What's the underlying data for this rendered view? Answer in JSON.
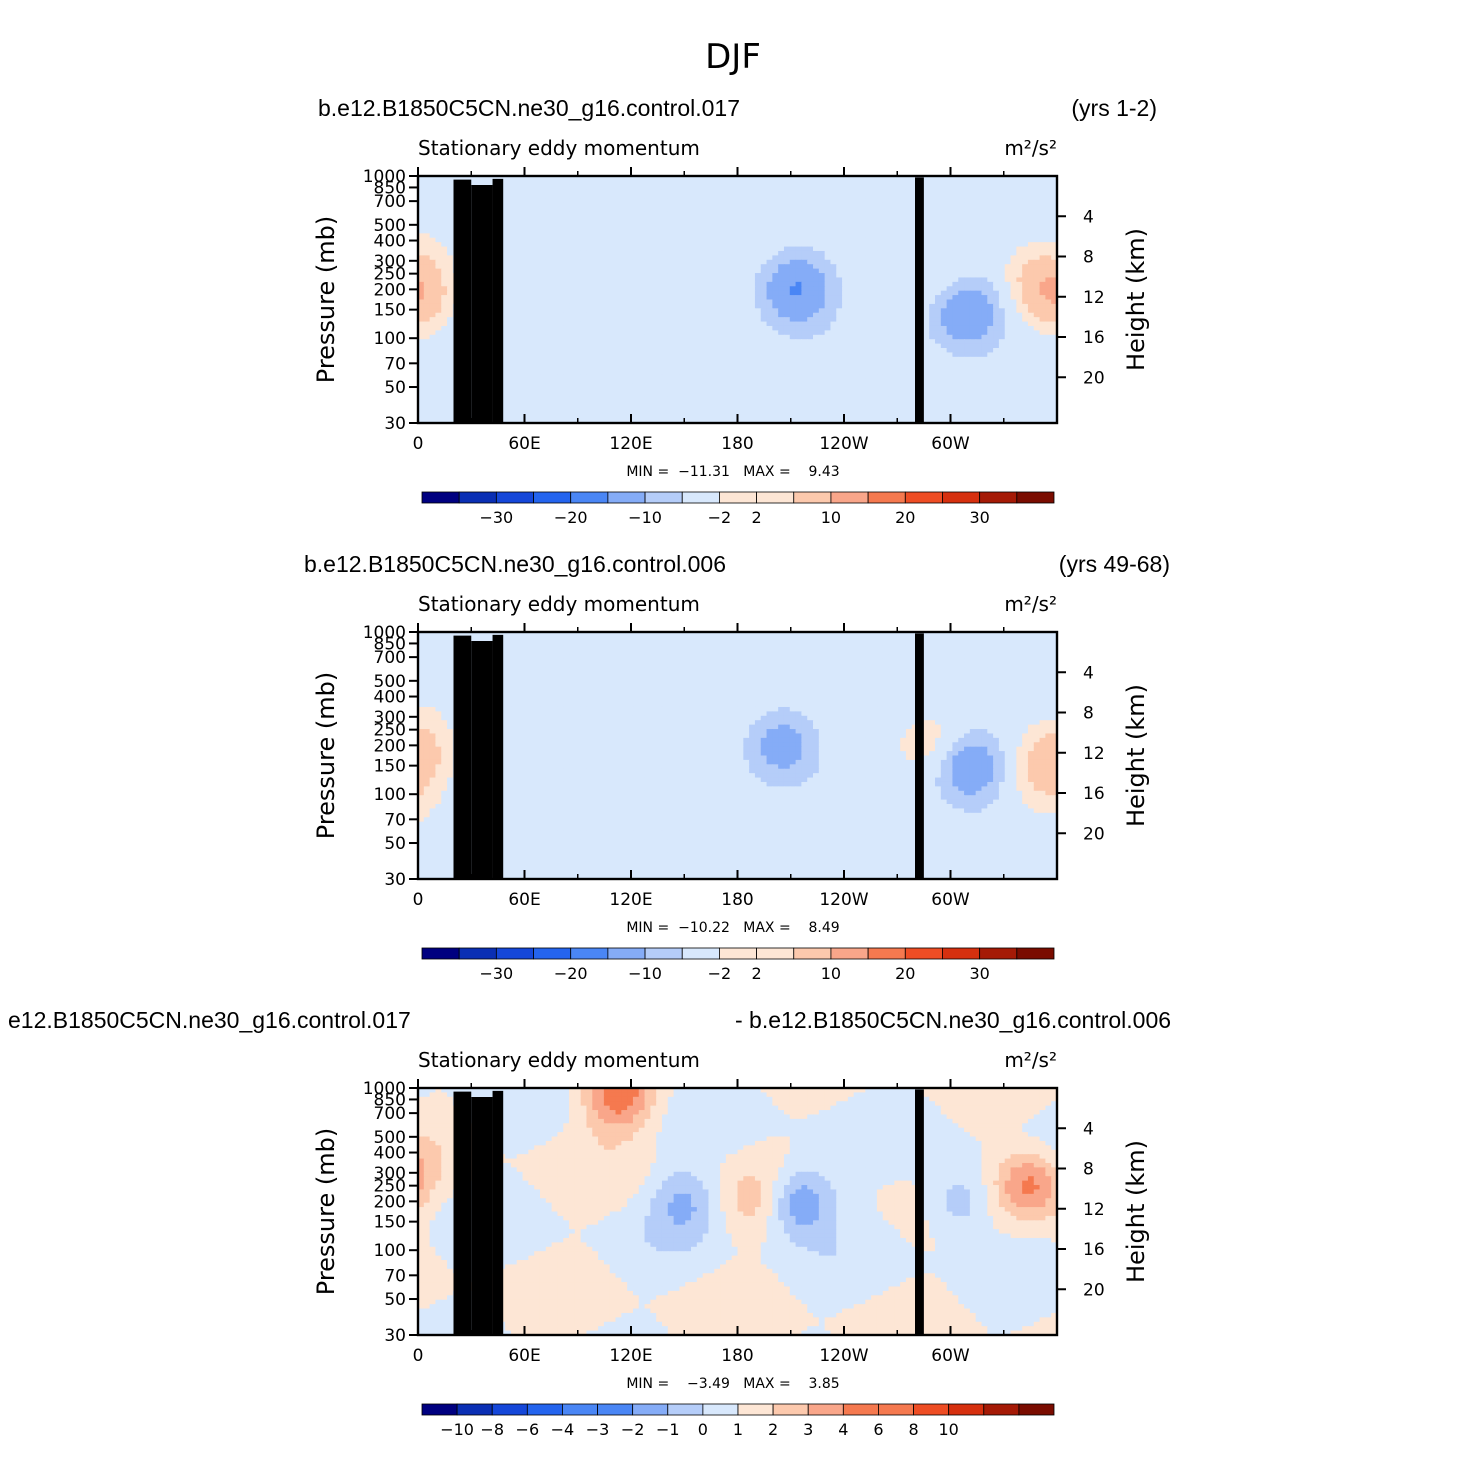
{
  "page": {
    "title": "DJF"
  },
  "panels": [
    {
      "case_name": "b.e12.B1850C5CN.ne30_g16.control.017",
      "years": "(yrs 1-2)",
      "left_title": "Stationary eddy momentum",
      "units": "m²/s²",
      "stats": "MIN =  −11.31   MAX =    9.43",
      "colorbar_ticks": [
        "−30",
        "−20",
        "−10",
        "−2",
        "2",
        "10",
        "20",
        "30"
      ]
    },
    {
      "case_name": "b.e12.B1850C5CN.ne30_g16.control.006",
      "years": "(yrs 49-68)",
      "left_title": "Stationary eddy momentum",
      "units": "m²/s²",
      "stats": "MIN =  −10.22   MAX =    8.49",
      "colorbar_ticks": [
        "−30",
        "−20",
        "−10",
        "−2",
        "2",
        "10",
        "20",
        "30"
      ]
    },
    {
      "case_name": "e12.B1850C5CN.ne30_g16.control.017",
      "years": "- b.e12.B1850C5CN.ne30_g16.control.006",
      "left_title": "Stationary eddy momentum",
      "units": "m²/s²",
      "stats": "MIN =    −3.49   MAX =    3.85",
      "colorbar_ticks": [
        "−10",
        "−8",
        "−6",
        "−4",
        "−3",
        "−2",
        "−1",
        "0",
        "1",
        "2",
        "3",
        "4",
        "6",
        "8",
        "10"
      ]
    }
  ],
  "colors": {
    "palette_16": [
      "#000080",
      "#0a2fb4",
      "#1547d9",
      "#2464ee",
      "#4a86f5",
      "#85acf7",
      "#b5cdf9",
      "#d8e8fc",
      "#fde6d5",
      "#fcc9ad",
      "#f9a68a",
      "#f5794f",
      "#ee4d24",
      "#d6300f",
      "#a51a06",
      "#7a0c00"
    ]
  },
  "chart_data": [
    {
      "type": "heatmap",
      "title": "Stationary eddy momentum",
      "xlabel": "",
      "ylabel": "Pressure (mb)",
      "y2label": "Height (km)",
      "units": "m²/s²",
      "x_ticks": [
        "0",
        "60E",
        "120E",
        "180",
        "120W",
        "60W"
      ],
      "y_ticks": [
        "30",
        "50",
        "70",
        "100",
        "150",
        "200",
        "250",
        "300",
        "400",
        "500",
        "700",
        "850",
        "1000"
      ],
      "y2_ticks": [
        "20",
        "16",
        "12",
        "8",
        "4"
      ],
      "x_range_deg": [
        0,
        360
      ],
      "y_range_mb": [
        30,
        1000
      ],
      "y_scale": "log",
      "min": -11.31,
      "max": 9.43,
      "levels": [
        -35,
        -30,
        -25,
        -20,
        -15,
        -10,
        -5,
        -2,
        2,
        5,
        10,
        15,
        20,
        25,
        30,
        35
      ],
      "features": [
        {
          "lon": 0,
          "p": 180,
          "value": 8
        },
        {
          "lon": 213,
          "p": 200,
          "value": -11
        },
        {
          "lon": 308,
          "p": 150,
          "value": -11
        },
        {
          "lon": 350,
          "p": 250,
          "value": 5
        },
        {
          "lon": 295,
          "p": 220,
          "value": 3
        }
      ]
    },
    {
      "type": "heatmap",
      "title": "Stationary eddy momentum",
      "xlabel": "",
      "ylabel": "Pressure (mb)",
      "y2label": "Height (km)",
      "units": "m²/s²",
      "x_ticks": [
        "0",
        "60E",
        "120E",
        "180",
        "120W",
        "60W"
      ],
      "y_ticks": [
        "30",
        "50",
        "70",
        "100",
        "150",
        "200",
        "250",
        "300",
        "400",
        "500",
        "700",
        "850",
        "1000"
      ],
      "y2_ticks": [
        "20",
        "16",
        "12",
        "8",
        "4"
      ],
      "x_range_deg": [
        0,
        360
      ],
      "y_range_mb": [
        30,
        1000
      ],
      "y_scale": "log",
      "min": -10.22,
      "max": 8.49,
      "levels": [
        -35,
        -30,
        -25,
        -20,
        -15,
        -10,
        -5,
        -2,
        2,
        5,
        10,
        15,
        20,
        25,
        30,
        35
      ],
      "features": [
        {
          "lon": 0,
          "p": 180,
          "value": 7
        },
        {
          "lon": 205,
          "p": 200,
          "value": -8
        },
        {
          "lon": 310,
          "p": 150,
          "value": -10
        },
        {
          "lon": 352,
          "p": 110,
          "value": 4
        },
        {
          "lon": 290,
          "p": 200,
          "value": 4
        }
      ]
    },
    {
      "type": "heatmap",
      "title": "Stationary eddy momentum",
      "xlabel": "",
      "ylabel": "Pressure (mb)",
      "y2label": "Height (km)",
      "units": "m²/s²",
      "x_ticks": [
        "0",
        "60E",
        "120E",
        "180",
        "120W",
        "60W"
      ],
      "y_ticks": [
        "30",
        "50",
        "70",
        "100",
        "150",
        "200",
        "250",
        "300",
        "400",
        "500",
        "700",
        "850",
        "1000"
      ],
      "y2_ticks": [
        "20",
        "16",
        "12",
        "8",
        "4"
      ],
      "x_range_deg": [
        0,
        360
      ],
      "y_range_mb": [
        30,
        1000
      ],
      "y_scale": "log",
      "min": -3.49,
      "max": 3.85,
      "levels": [
        -12,
        -10,
        -8,
        -6,
        -4,
        -3,
        -2,
        -1,
        0,
        1,
        2,
        3,
        4,
        6,
        8,
        10,
        12
      ],
      "features": [
        {
          "lon": 215,
          "p": 200,
          "value": -3.4
        },
        {
          "lon": 305,
          "p": 200,
          "value": -2.2
        },
        {
          "lon": 345,
          "p": 260,
          "value": 3.5
        },
        {
          "lon": 113,
          "p": 900,
          "value": 3.8
        },
        {
          "lon": 150,
          "p": 200,
          "value": -2
        },
        {
          "lon": 190,
          "p": 200,
          "value": 1.2
        }
      ]
    }
  ]
}
